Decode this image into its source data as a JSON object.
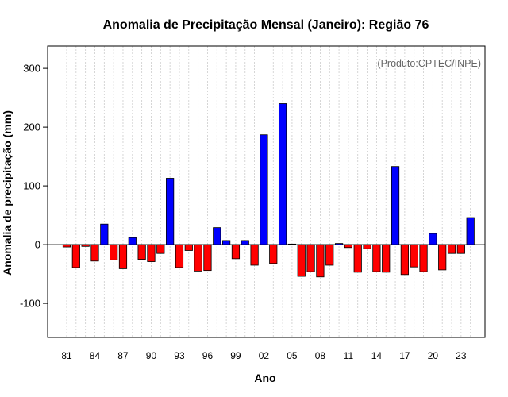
{
  "chart_data": {
    "type": "bar",
    "title": "Anomalia de Precipitação Mensal (Janeiro): Região 76",
    "xlabel": "Ano",
    "ylabel": "Anomalia de precipitação (mm)",
    "annotation": "(Produto:CPTEC/INPE)",
    "ylim": [
      -158,
      338
    ],
    "yticks": [
      -100,
      0,
      100,
      200,
      300
    ],
    "grid": true,
    "x": [
      "81",
      "82",
      "83",
      "84",
      "85",
      "86",
      "87",
      "88",
      "89",
      "90",
      "91",
      "92",
      "93",
      "94",
      "95",
      "96",
      "97",
      "98",
      "99",
      "00",
      "01",
      "02",
      "03",
      "04",
      "05",
      "06",
      "07",
      "08",
      "09",
      "10",
      "11",
      "12",
      "13",
      "14",
      "15",
      "16",
      "17",
      "18",
      "19",
      "20",
      "21",
      "22",
      "23",
      "24"
    ],
    "x_tick_labels": [
      "81",
      "84",
      "87",
      "90",
      "93",
      "96",
      "99",
      "02",
      "05",
      "08",
      "11",
      "14",
      "17",
      "20",
      "23"
    ],
    "values": [
      -4,
      -39,
      -3,
      -28,
      35,
      -26,
      -41,
      12,
      -25,
      -29,
      -15,
      113,
      -39,
      -10,
      -45,
      -44,
      29,
      7,
      -24,
      7,
      -35,
      187,
      -32,
      240,
      1,
      -54,
      -46,
      -55,
      -35,
      2,
      -5,
      -47,
      -7,
      -46,
      -47,
      133,
      -51,
      -38,
      -46,
      19,
      -43,
      -15,
      -15,
      46
    ],
    "colors": {
      "positive": "#0000ff",
      "negative": "#ff0000"
    }
  }
}
